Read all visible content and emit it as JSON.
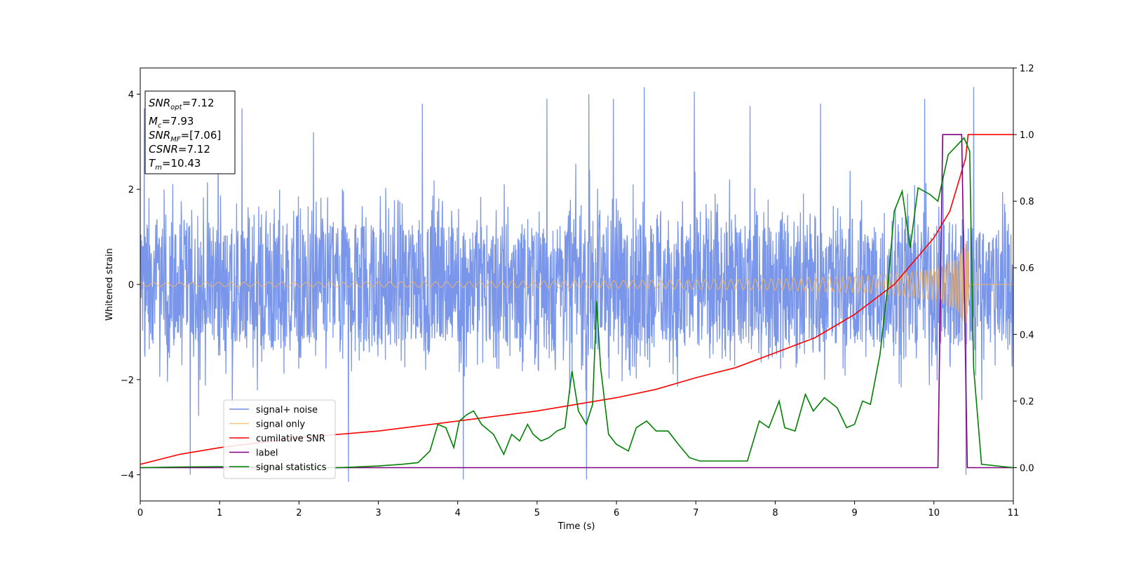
{
  "chart_data": {
    "type": "line",
    "xlabel": "Time (s)",
    "ylabel": "Whitened strain",
    "y2label": "",
    "xlim": [
      0,
      11
    ],
    "ylim": [
      -4.55,
      4.55
    ],
    "y2lim": [
      -0.1,
      1.2
    ],
    "xticks": [
      0,
      1,
      2,
      3,
      4,
      5,
      6,
      7,
      8,
      9,
      10,
      11
    ],
    "yticks": [
      -4,
      -2,
      0,
      2,
      4
    ],
    "y2ticks": [
      0.0,
      0.2,
      0.4,
      0.6,
      0.8,
      1.0,
      1.2
    ],
    "grid": false,
    "legend_position": "lower-left",
    "info_box": {
      "snr_opt": {
        "var": "SNR",
        "sub": "opt",
        "value": "=7.12"
      },
      "mc": {
        "var": "M",
        "sub": "c",
        "value": "=7.93"
      },
      "snr_mf": {
        "var": "SNR",
        "sub": "MF",
        "value": "=[7.06]"
      },
      "csnr": {
        "var": "CSNR",
        "value": "=7.12"
      },
      "tm": {
        "var": "T",
        "sub": "m",
        "value": "=10.43"
      }
    },
    "series": [
      {
        "name": "signal+ noise",
        "axis": "left",
        "color": "#4169e1",
        "kind": "noise",
        "envelope_min": [
          [
            0,
            -2.3
          ],
          [
            1,
            -2.3
          ],
          [
            2,
            -2.3
          ],
          [
            3,
            -2.3
          ],
          [
            4,
            -2.3
          ],
          [
            5,
            -2.3
          ],
          [
            6,
            -2.3
          ],
          [
            7,
            -2.3
          ],
          [
            8,
            -2.3
          ],
          [
            9,
            -2.3
          ],
          [
            10,
            -2.3
          ],
          [
            11,
            -2.3
          ]
        ],
        "envelope_max": [
          [
            0,
            2.3
          ],
          [
            1,
            2.3
          ],
          [
            2,
            2.3
          ],
          [
            3,
            2.3
          ],
          [
            4,
            2.3
          ],
          [
            5,
            2.3
          ],
          [
            6,
            2.3
          ],
          [
            7,
            2.3
          ],
          [
            8,
            2.3
          ],
          [
            9,
            2.3
          ],
          [
            10,
            2.3
          ],
          [
            11,
            2.3
          ]
        ],
        "peaks": [
          [
            0.05,
            3.7
          ],
          [
            0.63,
            -4.0
          ],
          [
            0.98,
            3.9
          ],
          [
            1.28,
            3.7
          ],
          [
            2.18,
            3.2
          ],
          [
            2.62,
            -4.15
          ],
          [
            3.55,
            3.8
          ],
          [
            4.07,
            -4.1
          ],
          [
            5.12,
            3.9
          ],
          [
            5.62,
            -4.1
          ],
          [
            5.65,
            4.0
          ],
          [
            5.96,
            3.9
          ],
          [
            6.35,
            4.15
          ],
          [
            6.98,
            4.05
          ],
          [
            7.68,
            3.75
          ],
          [
            8.57,
            3.8
          ],
          [
            9.88,
            3.9
          ],
          [
            10.4,
            -4.0
          ],
          [
            10.5,
            4.15
          ]
        ]
      },
      {
        "name": "signal only",
        "axis": "left",
        "color": "#f5b461",
        "kind": "chirp",
        "t_merge": 10.43,
        "envelope": [
          [
            0,
            0.04
          ],
          [
            2,
            0.05
          ],
          [
            4,
            0.06
          ],
          [
            6,
            0.08
          ],
          [
            8,
            0.12
          ],
          [
            9,
            0.17
          ],
          [
            9.5,
            0.22
          ],
          [
            10,
            0.33
          ],
          [
            10.3,
            0.55
          ],
          [
            10.38,
            0.85
          ],
          [
            10.43,
            1.0
          ],
          [
            10.45,
            0.0
          ],
          [
            11,
            0.0
          ]
        ]
      },
      {
        "name": "cumilative SNR",
        "axis": "right",
        "color": "#ff0000",
        "kind": "line",
        "points": [
          [
            0,
            0.01
          ],
          [
            0.5,
            0.04
          ],
          [
            1,
            0.06
          ],
          [
            2,
            0.09
          ],
          [
            3,
            0.11
          ],
          [
            4,
            0.14
          ],
          [
            5,
            0.17
          ],
          [
            5.5,
            0.19
          ],
          [
            6,
            0.21
          ],
          [
            6.5,
            0.235
          ],
          [
            7,
            0.27
          ],
          [
            7.5,
            0.3
          ],
          [
            8,
            0.345
          ],
          [
            8.5,
            0.39
          ],
          [
            9,
            0.46
          ],
          [
            9.5,
            0.55
          ],
          [
            10,
            0.69
          ],
          [
            10.2,
            0.77
          ],
          [
            10.4,
            0.93
          ],
          [
            10.43,
            1.0
          ],
          [
            11,
            1.0
          ]
        ]
      },
      {
        "name": "label",
        "axis": "right",
        "color": "#800080",
        "kind": "line",
        "points": [
          [
            0,
            0.0
          ],
          [
            10.05,
            0.0
          ],
          [
            10.11,
            1.0
          ],
          [
            10.35,
            1.0
          ],
          [
            10.42,
            0.0
          ],
          [
            11,
            0.0
          ]
        ]
      },
      {
        "name": "signal statistics",
        "axis": "right",
        "color": "#008000",
        "kind": "line",
        "points": [
          [
            0,
            0.0
          ],
          [
            0.5,
            0.002
          ],
          [
            1,
            0.003
          ],
          [
            2,
            0.0
          ],
          [
            2.5,
            0.0
          ],
          [
            3,
            0.005
          ],
          [
            3.3,
            0.01
          ],
          [
            3.5,
            0.015
          ],
          [
            3.65,
            0.05
          ],
          [
            3.75,
            0.13
          ],
          [
            3.85,
            0.12
          ],
          [
            3.95,
            0.06
          ],
          [
            4.02,
            0.14
          ],
          [
            4.12,
            0.16
          ],
          [
            4.2,
            0.17
          ],
          [
            4.3,
            0.13
          ],
          [
            4.45,
            0.1
          ],
          [
            4.58,
            0.04
          ],
          [
            4.68,
            0.1
          ],
          [
            4.78,
            0.08
          ],
          [
            4.88,
            0.13
          ],
          [
            4.95,
            0.1
          ],
          [
            5.05,
            0.08
          ],
          [
            5.15,
            0.09
          ],
          [
            5.25,
            0.11
          ],
          [
            5.35,
            0.12
          ],
          [
            5.44,
            0.29
          ],
          [
            5.52,
            0.17
          ],
          [
            5.62,
            0.13
          ],
          [
            5.7,
            0.19
          ],
          [
            5.75,
            0.5
          ],
          [
            5.8,
            0.3
          ],
          [
            5.9,
            0.1
          ],
          [
            6.0,
            0.07
          ],
          [
            6.15,
            0.05
          ],
          [
            6.25,
            0.12
          ],
          [
            6.38,
            0.14
          ],
          [
            6.5,
            0.11
          ],
          [
            6.65,
            0.11
          ],
          [
            6.78,
            0.07
          ],
          [
            6.92,
            0.03
          ],
          [
            7.05,
            0.02
          ],
          [
            7.2,
            0.02
          ],
          [
            7.35,
            0.02
          ],
          [
            7.5,
            0.02
          ],
          [
            7.65,
            0.02
          ],
          [
            7.8,
            0.14
          ],
          [
            7.92,
            0.12
          ],
          [
            8.05,
            0.2
          ],
          [
            8.12,
            0.12
          ],
          [
            8.25,
            0.11
          ],
          [
            8.38,
            0.22
          ],
          [
            8.48,
            0.17
          ],
          [
            8.62,
            0.21
          ],
          [
            8.78,
            0.18
          ],
          [
            8.9,
            0.12
          ],
          [
            9.0,
            0.13
          ],
          [
            9.1,
            0.2
          ],
          [
            9.2,
            0.19
          ],
          [
            9.32,
            0.34
          ],
          [
            9.42,
            0.55
          ],
          [
            9.5,
            0.77
          ],
          [
            9.6,
            0.83
          ],
          [
            9.7,
            0.66
          ],
          [
            9.8,
            0.84
          ],
          [
            9.95,
            0.82
          ],
          [
            10.05,
            0.8
          ],
          [
            10.18,
            0.94
          ],
          [
            10.3,
            0.97
          ],
          [
            10.38,
            0.99
          ],
          [
            10.45,
            0.95
          ],
          [
            10.5,
            0.3
          ],
          [
            10.6,
            0.01
          ],
          [
            11,
            0.0
          ]
        ]
      }
    ]
  }
}
